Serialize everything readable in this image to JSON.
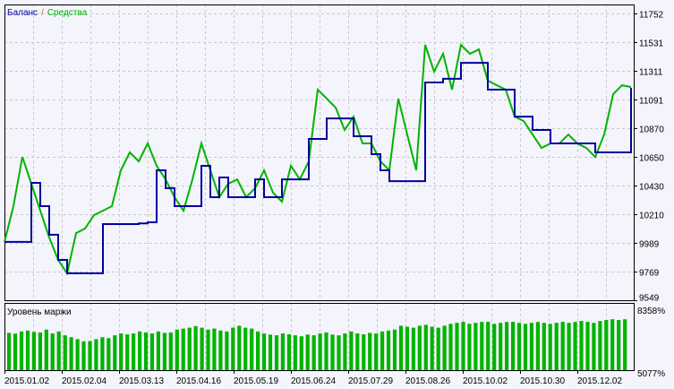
{
  "chart_data": [
    {
      "type": "line",
      "legend": {
        "balance_label": "Баланс",
        "separator": "/",
        "equity_label": "Средства",
        "placement": "top-left"
      },
      "colors": {
        "balance": "#0000a0",
        "equity": "#00b400",
        "grid": "#c8c8c8",
        "background": "#f4f4fc"
      },
      "grid": true,
      "ylim": [
        9549,
        11821
      ],
      "y_ticks": [
        "11752",
        "11531",
        "11311",
        "11091",
        "10870",
        "10650",
        "10430",
        "10210",
        "9989",
        "9769",
        "9549"
      ],
      "y_tick_values": [
        11752,
        11531,
        11311,
        11091,
        10870,
        10650,
        10430,
        10210,
        9989,
        9769,
        9549
      ],
      "x_ticks": [
        "2015.01.02",
        "2015.02.04",
        "2015.03.13",
        "2015.04.16",
        "2015.05.19",
        "2015.06.24",
        "2015.07.29",
        "2015.08.26",
        "2015.10.02",
        "2015.10.30",
        "2015.12.02"
      ],
      "series": [
        {
          "name": "Баланс",
          "step": true,
          "values": [
            9997,
            9997,
            9997,
            10451,
            10272,
            10052,
            9859,
            9756,
            9756,
            9756,
            9756,
            10134,
            10134,
            10134,
            10134,
            10140,
            10148,
            10547,
            10410,
            10272,
            10272,
            10272,
            10582,
            10341,
            10492,
            10341,
            10341,
            10341,
            10478,
            10341,
            10341,
            10478,
            10478,
            10478,
            10788,
            10788,
            10946,
            10946,
            10946,
            10809,
            10809,
            10671,
            10547,
            10464,
            10464,
            10464,
            10464,
            11222,
            11222,
            11250,
            11250,
            11373,
            11373,
            11373,
            11167,
            11167,
            11167,
            10960,
            10960,
            10857,
            10857,
            10754,
            10754,
            10754,
            10754,
            10754,
            10685,
            10685,
            10685,
            10685,
            11180
          ]
        },
        {
          "name": "Средства",
          "values": [
            9997,
            10272,
            10650,
            10444,
            10237,
            10031,
            9859,
            9756,
            10065,
            10100,
            10203,
            10237,
            10272,
            10547,
            10685,
            10616,
            10754,
            10582,
            10478,
            10341,
            10237,
            10478,
            10754,
            10547,
            10341,
            10444,
            10478,
            10341,
            10410,
            10547,
            10375,
            10306,
            10582,
            10478,
            10616,
            11167,
            11098,
            11029,
            10857,
            10960,
            10754,
            10754,
            10616,
            10547,
            11098,
            10822,
            10547,
            11511,
            11305,
            11442,
            11167,
            11511,
            11442,
            11476,
            11236,
            11201,
            11167,
            10960,
            10926,
            10822,
            10719,
            10754,
            10754,
            10822,
            10754,
            10719,
            10650,
            10822,
            11132,
            11201,
            11187
          ]
        }
      ]
    },
    {
      "type": "bar",
      "title": "Уровень маржи",
      "color": "#00b400",
      "ylim": [
        5077,
        8358
      ],
      "y_ticks": [
        "8358%",
        "5077%"
      ],
      "values": [
        7029,
        6990,
        7100,
        7150,
        7080,
        7050,
        7200,
        7000,
        7100,
        6900,
        6800,
        6700,
        6586,
        6600,
        6700,
        6800,
        6750,
        6900,
        7000,
        6950,
        7000,
        7100,
        7050,
        7000,
        7100,
        7029,
        7050,
        7200,
        7250,
        7300,
        7383,
        7300,
        7200,
        7250,
        7150,
        7100,
        7300,
        7400,
        7300,
        7250,
        7100,
        7000,
        6940,
        6900,
        7000,
        6950,
        6900,
        6850,
        6940,
        6900,
        7000,
        7050,
        6940,
        6900,
        7000,
        7100,
        7000,
        6950,
        7029,
        7000,
        7100,
        7150,
        7200,
        7400,
        7350,
        7300,
        7400,
        7450,
        7350,
        7300,
        7400,
        7500,
        7550,
        7605,
        7500,
        7550,
        7600,
        7605,
        7500,
        7550,
        7600,
        7605,
        7550,
        7500,
        7550,
        7600,
        7550,
        7500,
        7550,
        7605,
        7550,
        7600,
        7650,
        7605,
        7550,
        7650,
        7700,
        7738,
        7700,
        7738
      ]
    }
  ]
}
